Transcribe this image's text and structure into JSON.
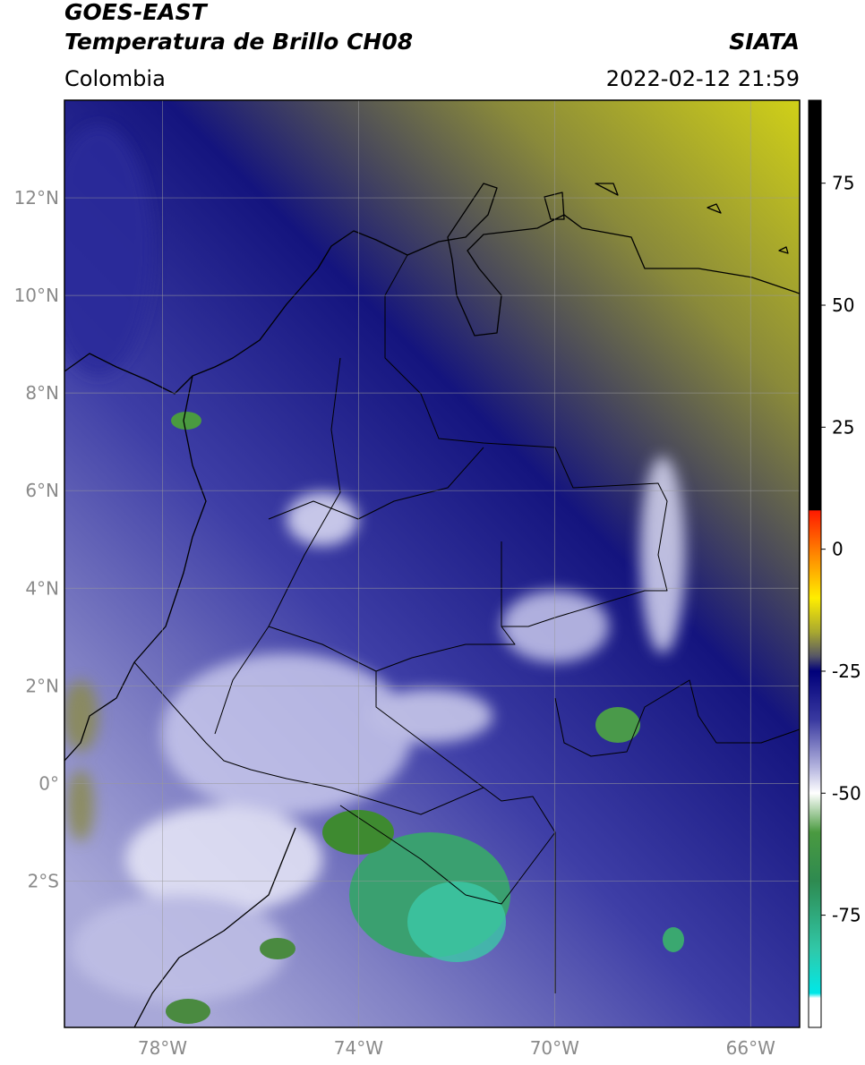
{
  "header": {
    "title": "GOES-EAST",
    "subtitle": "Temperatura de Brillo CH08",
    "source": "SIATA",
    "region": "Colombia",
    "datetime": "2022-02-12 21:59"
  },
  "map": {
    "lonlim": [
      -80,
      -65
    ],
    "latlim": [
      -5,
      14
    ],
    "grid": true,
    "lon_ticks": [
      {
        "value": -78,
        "label": "78°W"
      },
      {
        "value": -74,
        "label": "74°W"
      },
      {
        "value": -70,
        "label": "70°W"
      },
      {
        "value": -66,
        "label": "66°W"
      }
    ],
    "lat_ticks": [
      {
        "value": 12,
        "label": "12°N"
      },
      {
        "value": 10,
        "label": "10°N"
      },
      {
        "value": 8,
        "label": "8°N"
      },
      {
        "value": 6,
        "label": "6°N"
      },
      {
        "value": 4,
        "label": "4°N"
      },
      {
        "value": 2,
        "label": "2°N"
      },
      {
        "value": 0,
        "label": "0°"
      },
      {
        "value": -2,
        "label": "2°S"
      }
    ]
  },
  "colorbar": {
    "lim": [
      -98,
      92
    ],
    "ticks": [
      75,
      50,
      25,
      0,
      -25,
      -50,
      -75
    ],
    "stops": [
      {
        "value": 92,
        "color": "#000000"
      },
      {
        "value": 8,
        "color": "#000000"
      },
      {
        "value": 7.9,
        "color": "#ff1a00"
      },
      {
        "value": 0,
        "color": "#ff7a00"
      },
      {
        "value": -10,
        "color": "#ffee00"
      },
      {
        "value": -17,
        "color": "#a8a830"
      },
      {
        "value": -22,
        "color": "#555566"
      },
      {
        "value": -25,
        "color": "#00007a"
      },
      {
        "value": -35,
        "color": "#3a3aa0"
      },
      {
        "value": -45,
        "color": "#b8b8e0"
      },
      {
        "value": -50,
        "color": "#ffffff"
      },
      {
        "value": -58,
        "color": "#4a9a40"
      },
      {
        "value": -68,
        "color": "#2e8a50"
      },
      {
        "value": -82,
        "color": "#30c8a8"
      },
      {
        "value": -91,
        "color": "#00e8e8"
      },
      {
        "value": -92,
        "color": "#ffffff"
      },
      {
        "value": -98,
        "color": "#ffffff"
      }
    ]
  }
}
